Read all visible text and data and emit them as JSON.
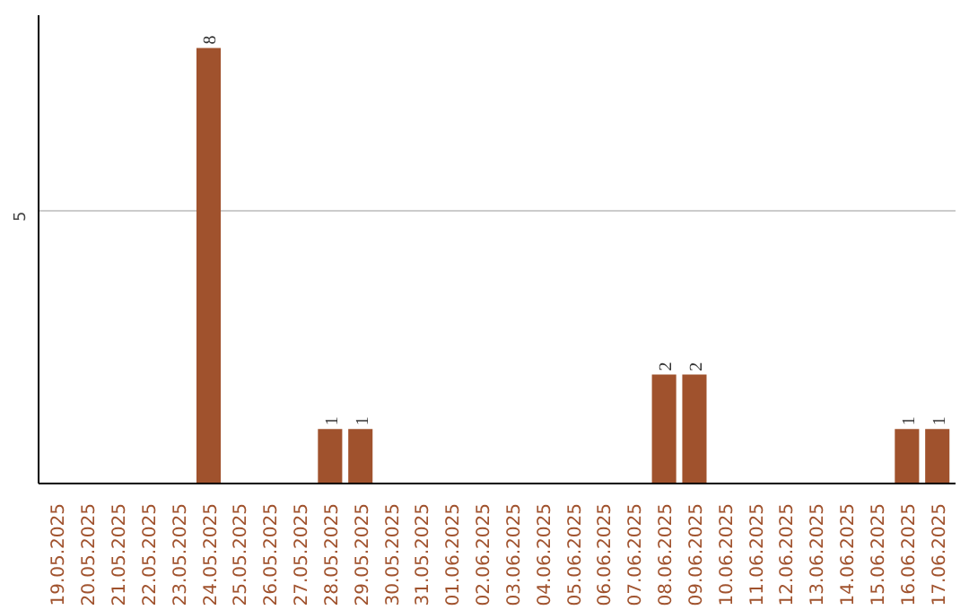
{
  "chart_data": {
    "type": "bar",
    "categories": [
      "19.05.2025",
      "20.05.2025",
      "21.05.2025",
      "22.05.2025",
      "23.05.2025",
      "24.05.2025",
      "25.05.2025",
      "26.05.2025",
      "27.05.2025",
      "28.05.2025",
      "29.05.2025",
      "30.05.2025",
      "31.05.2025",
      "01.06.2025",
      "02.06.2025",
      "03.06.2025",
      "04.06.2025",
      "05.06.2025",
      "06.06.2025",
      "07.06.2025",
      "08.06.2025",
      "09.06.2025",
      "10.06.2025",
      "11.06.2025",
      "12.06.2025",
      "13.06.2025",
      "14.06.2025",
      "15.06.2025",
      "16.06.2025",
      "17.06.2025"
    ],
    "values": [
      0,
      0,
      0,
      0,
      0,
      8,
      0,
      0,
      0,
      1,
      1,
      0,
      0,
      0,
      0,
      0,
      0,
      0,
      0,
      0,
      2,
      2,
      0,
      0,
      0,
      0,
      0,
      0,
      1,
      1
    ],
    "color": "#a0522d",
    "ylim": [
      0,
      8.6
    ],
    "yticks": [
      5
    ],
    "grid": "y",
    "value_labels": [
      null,
      null,
      null,
      null,
      null,
      "8",
      null,
      null,
      null,
      "1",
      "1",
      null,
      null,
      null,
      null,
      null,
      null,
      null,
      null,
      null,
      "2",
      "2",
      null,
      null,
      null,
      null,
      null,
      null,
      "1",
      "1"
    ]
  }
}
